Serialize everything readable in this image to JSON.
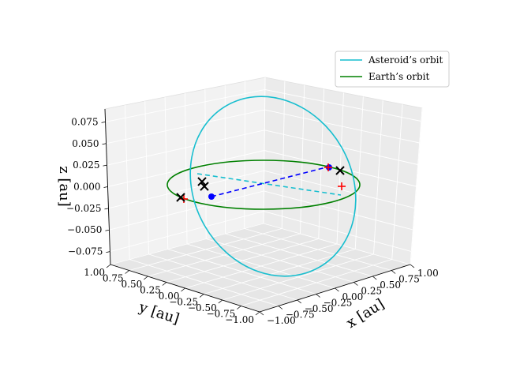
{
  "chart_data": {
    "type": "3d-line",
    "axes": {
      "x": {
        "label": "x [au]",
        "lim": [
          -1.0,
          1.0
        ],
        "ticks": [
          "−1.00",
          "−0.75",
          "−0.50",
          "−0.25",
          "0.00",
          "0.25",
          "0.50",
          "0.75",
          "1.00"
        ]
      },
      "y": {
        "label": "y [au]",
        "lim": [
          -1.0,
          1.0
        ],
        "ticks": [
          "1.00",
          "0.75",
          "0.50",
          "0.25",
          "0.00",
          "−0.25",
          "−0.50",
          "−0.75",
          "−1.00"
        ]
      },
      "z": {
        "label": "z [au]",
        "lim": [
          -0.09,
          0.09
        ],
        "ticks": [
          "0.075",
          "0.050",
          "0.025",
          "0.000",
          "−0.025",
          "−0.050",
          "−0.075"
        ]
      }
    },
    "grid": true,
    "legend": {
      "position": "top-right",
      "entries": [
        {
          "label": "Asteroid’s orbit",
          "color": "#17becf"
        },
        {
          "label": "Earth’s orbit",
          "color": "#008000"
        }
      ]
    },
    "series": [
      {
        "name": "Asteroid’s orbit",
        "color": "#17becf",
        "style": "solid"
      },
      {
        "name": "Earth’s orbit",
        "color": "#008000",
        "style": "solid"
      }
    ],
    "markers": {
      "blue_points": 2,
      "black_crosses": 4,
      "red_plus": 2
    }
  }
}
